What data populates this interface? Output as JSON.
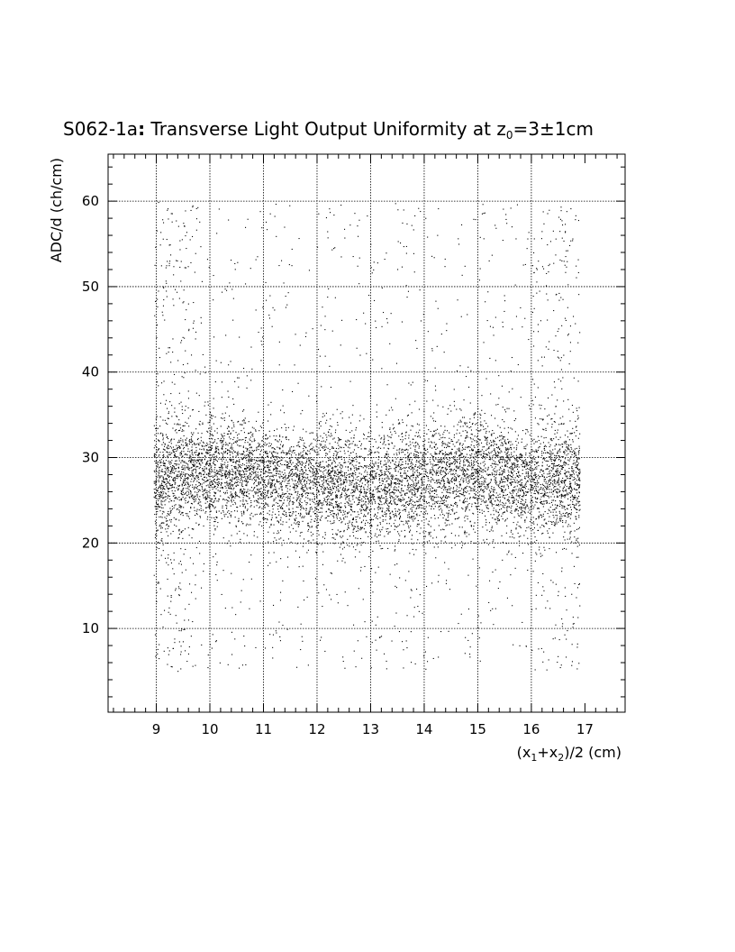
{
  "chart_data": {
    "type": "scatter",
    "title_prefix": "S062-1a",
    "title_colon": ":",
    "title_main": " Transverse Light Output Uniformity at z",
    "title_sub": "0",
    "title_rest": "=3±1cm",
    "xlabel_parts": {
      "p1": "(x",
      "s1": "1",
      "p2": "+x",
      "s2": "2",
      "p3": ")/2 (cm)"
    },
    "ylabel": "ADC/d (ch/cm)",
    "xlim": [
      8.1,
      17.75
    ],
    "ylim": [
      0.2,
      65.5
    ],
    "x_ticks": [
      9,
      10,
      11,
      12,
      13,
      14,
      15,
      16,
      17
    ],
    "y_ticks": [
      10,
      20,
      30,
      40,
      50,
      60
    ],
    "x_grid": [
      9,
      10,
      11,
      12,
      13,
      14,
      15,
      16
    ],
    "y_grid": [
      10,
      20,
      30,
      40,
      50,
      60
    ],
    "grid": true,
    "legend": "none",
    "point_color": "#000000",
    "distribution": {
      "x_range": [
        8.95,
        16.9
      ],
      "band_center": [
        [
          9.0,
          27.5
        ],
        [
          10.0,
          28.5
        ],
        [
          11.0,
          28.0
        ],
        [
          12.0,
          27.0
        ],
        [
          13.0,
          26.5
        ],
        [
          14.0,
          27.5
        ],
        [
          15.0,
          28.5
        ],
        [
          16.0,
          27.0
        ],
        [
          16.9,
          27.5
        ]
      ],
      "band_sigma": 3.2,
      "band_points": 7500,
      "halo_y_range": [
        5,
        60
      ],
      "halo_points": 1400
    }
  }
}
